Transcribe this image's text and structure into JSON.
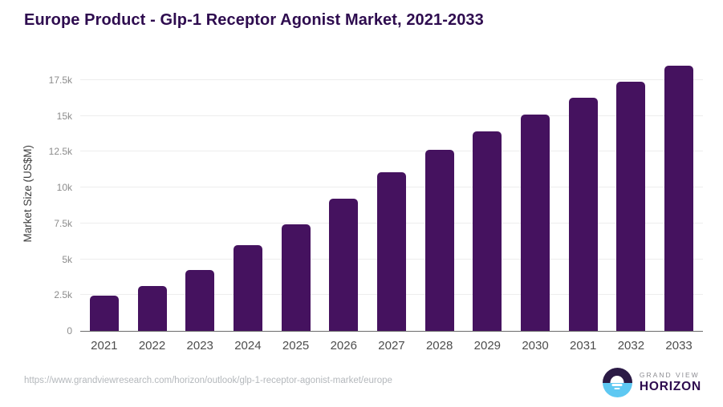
{
  "page": {
    "title": "Europe Product - Glp-1 Receptor Agonist Market, 2021-2033"
  },
  "chart_data": {
    "type": "bar",
    "title": "Europe Product - Glp-1 Receptor Agonist Market, 2021-2033",
    "categories": [
      "2021",
      "2022",
      "2023",
      "2024",
      "2025",
      "2026",
      "2027",
      "2028",
      "2029",
      "2030",
      "2031",
      "2032",
      "2033"
    ],
    "values": [
      2450,
      3150,
      4250,
      6000,
      7450,
      9200,
      11050,
      12650,
      13950,
      15100,
      16300,
      17400,
      18500
    ],
    "unit": "US$M",
    "xlabel": "",
    "ylabel": "Market Size (US$M)",
    "ylim": [
      0,
      19180
    ],
    "yticks": [
      0,
      2500,
      5000,
      7500,
      10000,
      12500,
      15000,
      17500
    ],
    "ytick_labels": [
      "0",
      "2.5k",
      "5k",
      "7.5k",
      "10k",
      "12.5k",
      "15k",
      "17.5k"
    ],
    "grid": true,
    "legend_position": "none",
    "bar_color": "#45125f"
  },
  "footer": {
    "source_url": "https://www.grandviewresearch.com/horizon/outlook/glp-1-receptor-agonist-market/europe",
    "logo": {
      "brand_line1": "GRAND VIEW",
      "brand_line2": "HORIZON"
    }
  },
  "colors": {
    "title": "#2e0c4f",
    "bar": "#45125f",
    "grid_line": "#ededed",
    "axis_line": "#6b6b6b",
    "y_tick_label": "#8c8c8c",
    "x_tick_label": "#4d4d4d",
    "y_axis_title": "#3f3f3f",
    "source_url": "#b4b8bc",
    "logo_dark": "#2b1a45",
    "logo_blue": "#5ec8f2",
    "logo_gray_text": "#8d8d92"
  }
}
